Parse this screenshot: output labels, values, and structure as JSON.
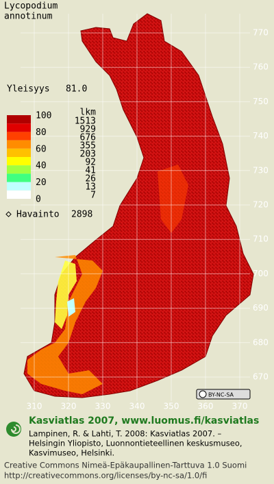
{
  "title": [
    "Lycopodium",
    "annotinum"
  ],
  "frequency": {
    "label": "Yleisyys",
    "value": "81.0"
  },
  "legend": {
    "percent_labels": [
      "100",
      "80",
      "60",
      "40",
      "20",
      "0"
    ],
    "count_header": "lkm",
    "counts": [
      "1513",
      "929",
      "676",
      "355",
      "203",
      "92",
      "41",
      "26",
      "13",
      "7"
    ],
    "colors": [
      "#b00000",
      "#e00000",
      "#ff4000",
      "#ff8c00",
      "#ffc000",
      "#ffff00",
      "#a0ff40",
      "#40ff80",
      "#c0ffff",
      "#ffffff"
    ]
  },
  "observations": {
    "label": "Havainto",
    "value": "2898"
  },
  "axes": {
    "northing": [
      770,
      760,
      750,
      740,
      730,
      720,
      710,
      700,
      690,
      680,
      670
    ],
    "easting": [
      310,
      320,
      330,
      340,
      350,
      360,
      370
    ]
  },
  "badge": "BY-NC-SA",
  "footer": {
    "heading": "Kasviatlas 2007, www.luomus.fi/kasviatlas",
    "citation": [
      "Lampinen, R. & Lahti, T. 2008: Kasviatlas 2007. –",
      "Helsingin Yliopisto, Luonnontieteellinen keskusmuseo,",
      "Kasvimuseo, Helsinki."
    ],
    "license": [
      "Creative Commons Nimeä-Epäkaupallinen-Tarttuva 1.0 Suomi",
      "http://creativecommons.org/licenses/by-nc-sa/1.0/fi"
    ]
  }
}
